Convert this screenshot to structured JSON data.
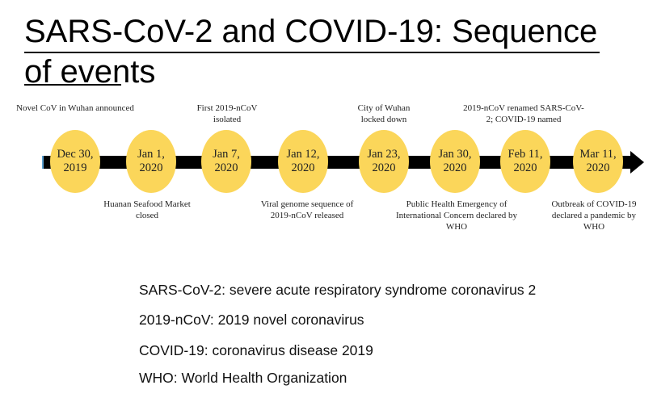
{
  "title": "SARS-CoV-2 and COVID-19: Sequence of events",
  "events": [
    {
      "date_line1": "Dec 30,",
      "date_line2": "2019",
      "label": "Novel CoV in Wuhan announced",
      "position": "above"
    },
    {
      "date_line1": "Jan 1,",
      "date_line2": "2020",
      "label": "Huanan Seafood Market closed",
      "position": "below"
    },
    {
      "date_line1": "Jan 7,",
      "date_line2": "2020",
      "label": "First 2019-nCoV isolated",
      "position": "above"
    },
    {
      "date_line1": "Jan 12,",
      "date_line2": "2020",
      "label": "Viral genome sequence of 2019-nCoV released",
      "position": "below"
    },
    {
      "date_line1": "Jan 23,",
      "date_line2": "2020",
      "label": "City of Wuhan locked down",
      "position": "above"
    },
    {
      "date_line1": "Jan 30,",
      "date_line2": "2020",
      "label": "Public Health Emergency of International Concern declared by WHO",
      "position": "below"
    },
    {
      "date_line1": "Feb 11,",
      "date_line2": "2020",
      "label": "2019-nCoV renamed SARS-CoV-2; COVID-19 named",
      "position": "above"
    },
    {
      "date_line1": "Mar 11,",
      "date_line2": "2020",
      "label": "Outbreak of COVID-19 declared a pandemic by WHO",
      "position": "below"
    }
  ],
  "glossary": [
    "SARS-CoV-2: severe acute respiratory syndrome coronavirus 2",
    "2019-nCoV: 2019 novel coronavirus",
    "COVID-19: coronavirus disease 2019",
    "WHO: World Health Organization"
  ],
  "colors": {
    "node": "#fbd65a",
    "timeline": "#000000"
  }
}
